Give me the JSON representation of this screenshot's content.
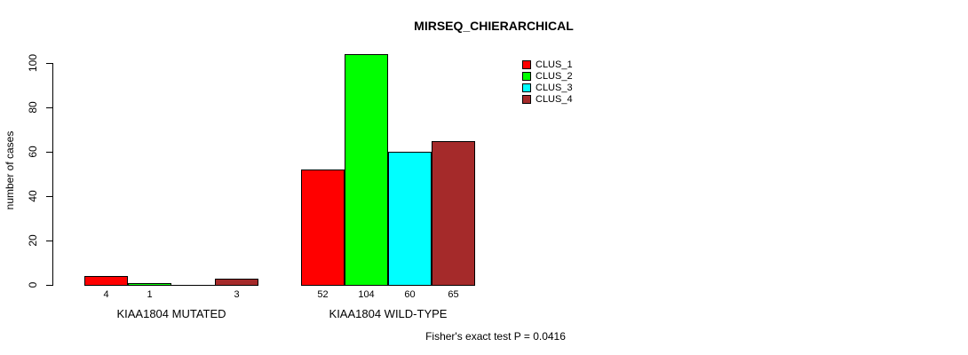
{
  "chart_data": {
    "type": "bar",
    "title": "MIRSEQ_CHIERARCHICAL",
    "ylabel": "number of cases",
    "xlabel": "",
    "categories": [
      "KIAA1804 MUTATED",
      "KIAA1804 WILD-TYPE"
    ],
    "series": [
      {
        "name": "CLUS_1",
        "color": "#ff0000",
        "values": [
          4,
          52
        ]
      },
      {
        "name": "CLUS_2",
        "color": "#00ff00",
        "values": [
          1,
          104
        ]
      },
      {
        "name": "CLUS_3",
        "color": "#00ffff",
        "values": [
          0,
          60
        ]
      },
      {
        "name": "CLUS_4",
        "color": "#a52a2a",
        "values": [
          3,
          65
        ]
      }
    ],
    "bar_value_labels": [
      [
        "4",
        "1",
        "",
        "3"
      ],
      [
        "52",
        "104",
        "60",
        "65"
      ]
    ],
    "y_ticks": [
      0,
      20,
      40,
      60,
      80,
      100
    ],
    "ylim": [
      0,
      100
    ],
    "grid": false,
    "legend_position": "top-right",
    "legend_border": false,
    "annotation": "Fisher's exact test P = 0.0416",
    "colors": {
      "axis": "#000000",
      "text": "#000000",
      "background": "#ffffff"
    }
  }
}
